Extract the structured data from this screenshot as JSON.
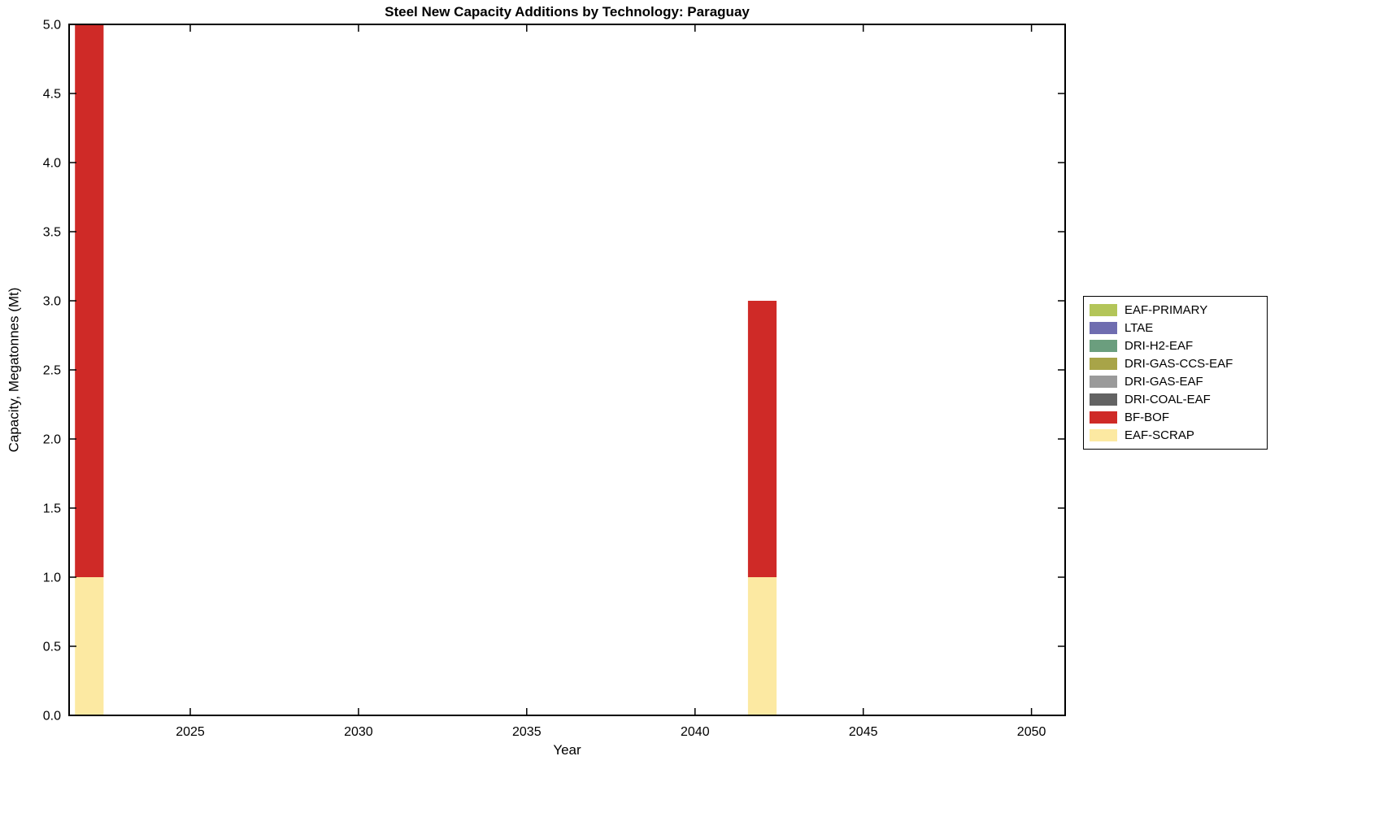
{
  "chart_data": {
    "type": "bar",
    "stacked": true,
    "title": "Steel New Capacity Additions by Technology: Paraguay",
    "xlabel": "Year",
    "ylabel": "Capacity, Megatonnes (Mt)",
    "xlim": [
      2021.4,
      2051.0
    ],
    "ylim": [
      0,
      5
    ],
    "xticks": [
      2025,
      2030,
      2035,
      2040,
      2045,
      2050
    ],
    "yticks": [
      0.0,
      0.5,
      1.0,
      1.5,
      2.0,
      2.5,
      3.0,
      3.5,
      4.0,
      4.5,
      5.0
    ],
    "grid": false,
    "bar_width_years": 0.85,
    "x": [
      2022,
      2042
    ],
    "series": [
      {
        "name": "EAF-SCRAP",
        "color": "#fce9a2",
        "values": [
          1,
          1
        ]
      },
      {
        "name": "BF-BOF",
        "color": "#cf2a27",
        "values": [
          4,
          2
        ]
      },
      {
        "name": "DRI-COAL-EAF",
        "color": "#636363",
        "values": [
          0,
          0
        ]
      },
      {
        "name": "DRI-GAS-EAF",
        "color": "#9a9a9a",
        "values": [
          0,
          0
        ]
      },
      {
        "name": "DRI-GAS-CCS-EAF",
        "color": "#a8a448",
        "values": [
          0,
          0
        ]
      },
      {
        "name": "DRI-H2-EAF",
        "color": "#6b9e7e",
        "values": [
          0,
          0
        ]
      },
      {
        "name": "LTAE",
        "color": "#6f6db0",
        "values": [
          0,
          0
        ]
      },
      {
        "name": "EAF-PRIMARY",
        "color": "#b3c559",
        "values": [
          0,
          0
        ]
      }
    ],
    "legend": {
      "position": "right-outside",
      "entries": [
        "EAF-PRIMARY",
        "LTAE",
        "DRI-H2-EAF",
        "DRI-GAS-CCS-EAF",
        "DRI-GAS-EAF",
        "DRI-COAL-EAF",
        "BF-BOF",
        "EAF-SCRAP"
      ]
    },
    "totals_by_x": {
      "2022": 5.0,
      "2042": 3.0
    }
  }
}
